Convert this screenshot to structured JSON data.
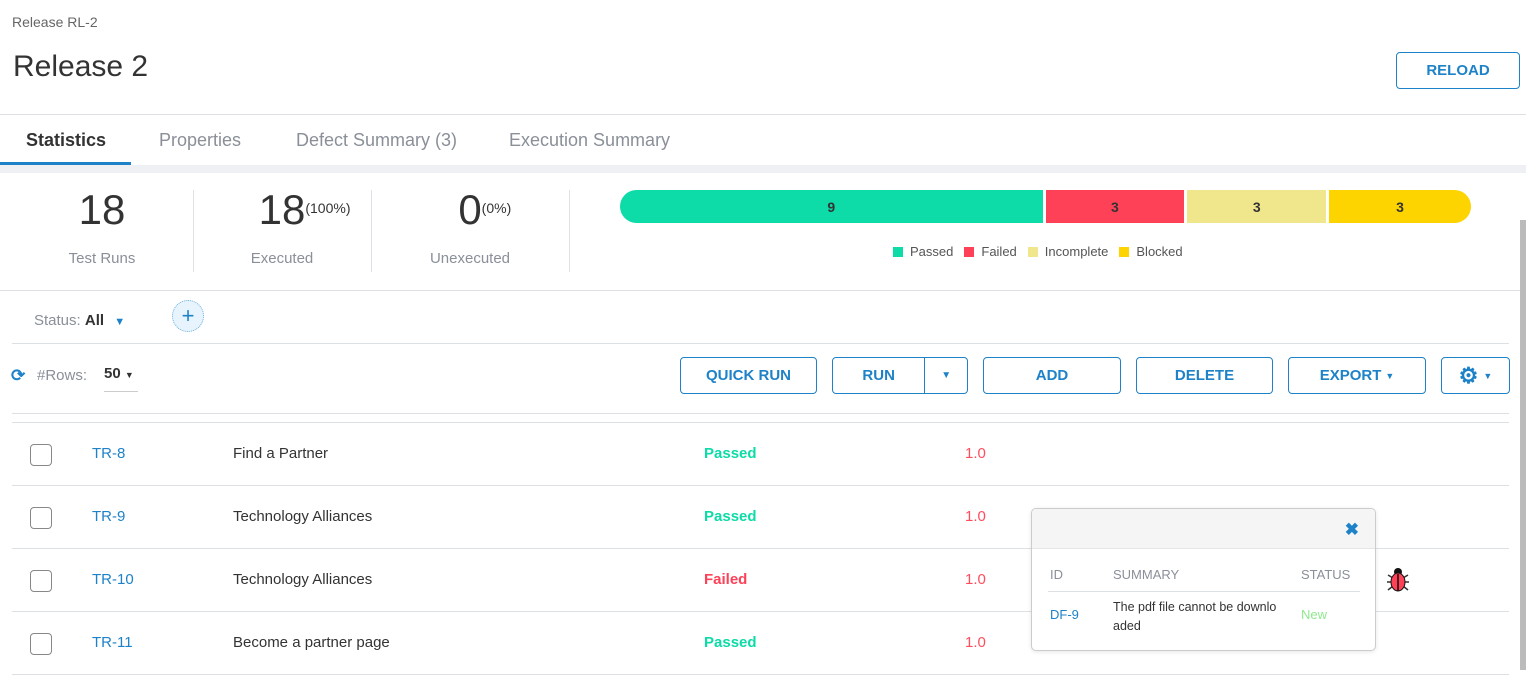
{
  "breadcrumb": "Release RL-2",
  "title": "Release 2",
  "reload_label": "RELOAD",
  "tabs": [
    {
      "label": "Statistics",
      "active": true
    },
    {
      "label": "Properties"
    },
    {
      "label": "Defect Summary (3)"
    },
    {
      "label": "Execution Summary"
    }
  ],
  "stats": {
    "test_runs": {
      "value": "18",
      "label": "Test Runs"
    },
    "executed": {
      "value": "18",
      "pct": "(100%)",
      "label": "Executed"
    },
    "unexecuted": {
      "value": "0",
      "pct": "(0%)",
      "label": "Unexecuted"
    }
  },
  "chart_data": {
    "type": "bar",
    "stacked": true,
    "orientation": "horizontal",
    "categories": [
      "Passed",
      "Failed",
      "Incomplete",
      "Blocked"
    ],
    "values": [
      9,
      3,
      3,
      3
    ],
    "labels": [
      "9",
      "3",
      "3",
      "3"
    ],
    "colors": [
      "#0ddba8",
      "#ff4158",
      "#f0e68c",
      "#fdd300"
    ],
    "legend_position": "bottom"
  },
  "filter": {
    "status_label": "Status:",
    "status_value": "All"
  },
  "toolbar": {
    "rows_label": "#Rows:",
    "rows_value": "50",
    "quick_run": "QUICK RUN",
    "run": "RUN",
    "add": "ADD",
    "delete": "DELETE",
    "export": "EXPORT"
  },
  "rows": [
    {
      "id": "TR-8",
      "name": "Find a Partner",
      "status": "Passed",
      "version": "1.0"
    },
    {
      "id": "TR-9",
      "name": "Technology Alliances",
      "status": "Passed",
      "version": "1.0"
    },
    {
      "id": "TR-10",
      "name": "Technology Alliances",
      "status": "Failed",
      "version": "1.0"
    },
    {
      "id": "TR-11",
      "name": "Become a partner page",
      "status": "Passed",
      "version": "1.0"
    }
  ],
  "status_colors": {
    "Passed": "#0ddba8",
    "Failed": "#ff4158",
    "New": "#8fe88f"
  },
  "popover": {
    "headers": [
      "ID",
      "SUMMARY",
      "STATUS"
    ],
    "defect": {
      "id": "DF-9",
      "summary": "The pdf file cannot be downlo aded",
      "status": "New"
    }
  }
}
